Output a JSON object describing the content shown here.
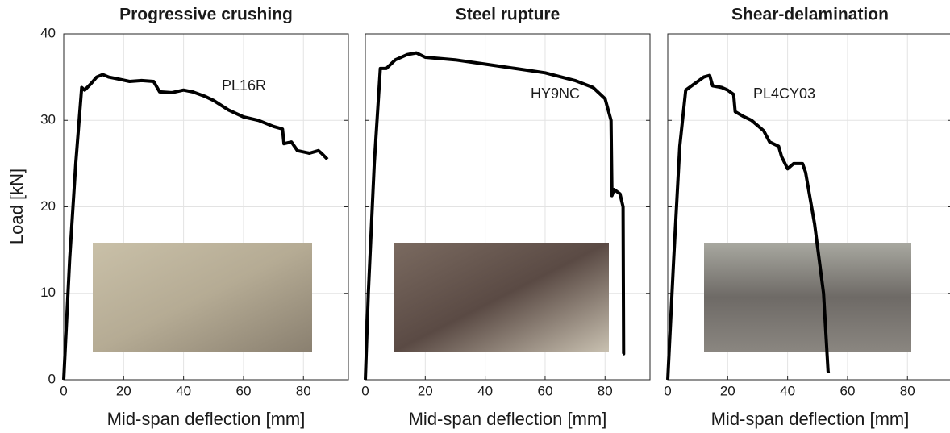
{
  "chart_data": [
    {
      "type": "line",
      "title": "Progressive crushing",
      "xlabel": "Mid-span deflection [mm]",
      "ylabel": "Load [kN]",
      "annotation": "PL16R",
      "xlim": [
        0,
        95
      ],
      "ylim": [
        0,
        40
      ],
      "xticks": [
        0,
        20,
        40,
        60,
        80
      ],
      "yticks": [
        0,
        10,
        20,
        30,
        40
      ],
      "grid": true,
      "color": "#000000",
      "x": [
        0,
        2,
        4,
        6,
        7,
        9,
        11,
        13,
        15,
        18,
        22,
        26,
        30,
        32,
        36,
        40,
        43,
        47,
        50,
        55,
        60,
        65,
        70,
        73,
        73.5,
        76,
        78,
        82,
        85,
        86,
        88
      ],
      "values": [
        0,
        14,
        25,
        33.8,
        33.5,
        34.2,
        35,
        35.3,
        35,
        34.8,
        34.5,
        34.6,
        34.5,
        33.3,
        33.2,
        33.5,
        33.3,
        32.8,
        32.3,
        31.2,
        30.4,
        30,
        29.3,
        29,
        27.3,
        27.5,
        26.5,
        26.2,
        26.5,
        26.2,
        25.5
      ]
    },
    {
      "type": "line",
      "title": "Steel rupture",
      "xlabel": "Mid-span deflection [mm]",
      "annotation": "HY9NC",
      "xlim": [
        0,
        95
      ],
      "ylim": [
        0,
        40
      ],
      "xticks": [
        0,
        20,
        40,
        60,
        80
      ],
      "yticks": [
        0,
        10,
        20,
        30,
        40
      ],
      "grid": true,
      "color": "#000000",
      "x": [
        0,
        1,
        3,
        5,
        7,
        10,
        14,
        17,
        20,
        30,
        40,
        50,
        60,
        70,
        76,
        80,
        82,
        82.3,
        83,
        85,
        86,
        86.2,
        86
      ],
      "values": [
        0,
        10,
        25,
        36,
        36,
        37,
        37.6,
        37.8,
        37.3,
        37,
        36.5,
        36,
        35.5,
        34.6,
        33.8,
        32.5,
        30,
        21.3,
        22,
        21.5,
        20,
        3,
        3
      ]
    },
    {
      "type": "line",
      "title": "Shear-delamination",
      "xlabel": "Mid-span deflection [mm]",
      "annotation": "PL4CY03",
      "xlim": [
        0,
        95
      ],
      "ylim": [
        0,
        40
      ],
      "xticks": [
        0,
        20,
        40,
        60,
        80
      ],
      "yticks": [
        0,
        10,
        20,
        30,
        40
      ],
      "grid": true,
      "color": "#000000",
      "x": [
        0,
        2,
        4,
        6,
        8,
        10,
        12,
        14,
        15,
        18,
        20,
        22,
        22.5,
        25,
        28,
        32,
        34,
        37,
        38,
        40,
        42,
        45,
        46,
        49,
        52,
        53.5,
        53.6
      ],
      "values": [
        0,
        14,
        27,
        33.5,
        34,
        34.5,
        35,
        35.2,
        34,
        33.8,
        33.5,
        33,
        31,
        30.5,
        30,
        28.8,
        27.5,
        27,
        25.8,
        24.4,
        25,
        25,
        24,
        18,
        10,
        1,
        0.8
      ]
    }
  ]
}
